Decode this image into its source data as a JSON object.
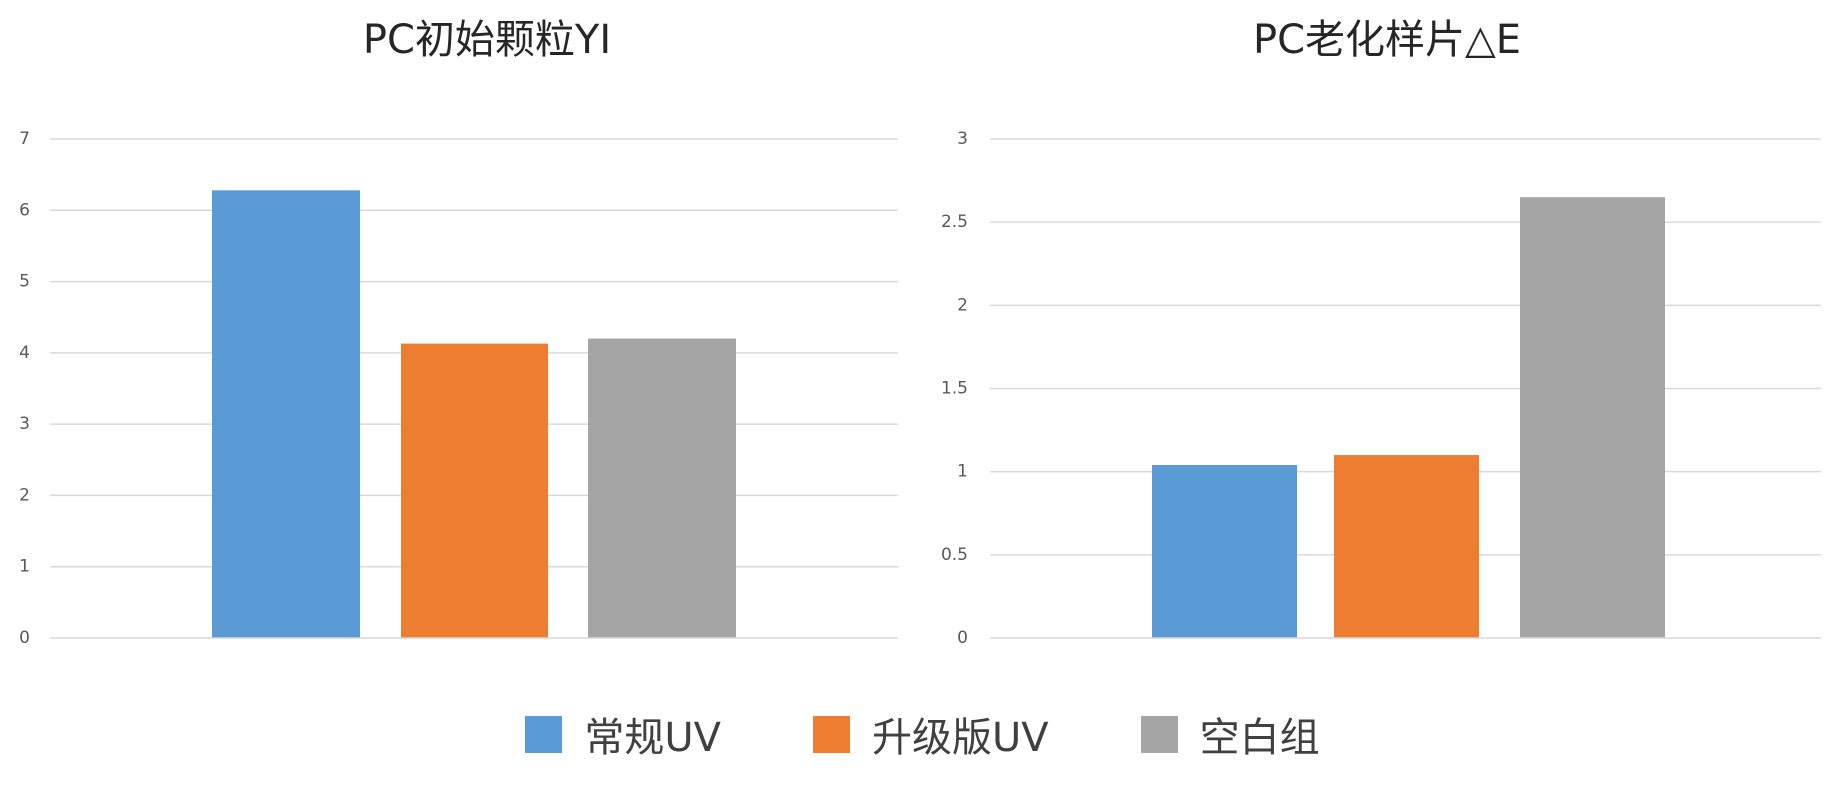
{
  "chart_data": [
    {
      "type": "bar",
      "title": "PC初始颗粒YI",
      "xlabel": "",
      "ylabel": "",
      "ylim": [
        0,
        7
      ],
      "yticks": [
        "0",
        "1",
        "2",
        "3",
        "4",
        "5",
        "6",
        "7"
      ],
      "grid": true,
      "legend": "bottom-center",
      "categories": [
        ""
      ],
      "series": [
        {
          "name": "常规UV",
          "values": [
            6.28
          ]
        },
        {
          "name": "升级版UV",
          "values": [
            4.13
          ]
        },
        {
          "name": "空白组",
          "values": [
            4.2
          ]
        }
      ]
    },
    {
      "type": "bar",
      "title": "PC老化样片△E",
      "xlabel": "",
      "ylabel": "",
      "ylim": [
        0,
        3
      ],
      "yticks": [
        "0",
        "0.5",
        "1",
        "1.5",
        "2",
        "2.5",
        "3"
      ],
      "grid": true,
      "legend": "bottom-center",
      "categories": [
        ""
      ],
      "series": [
        {
          "name": "常规UV",
          "values": [
            1.04
          ]
        },
        {
          "name": "升级版UV",
          "values": [
            1.1
          ]
        },
        {
          "name": "空白组",
          "values": [
            2.65
          ]
        }
      ]
    }
  ],
  "legend": {
    "items": [
      {
        "label": "常规UV",
        "color": "#5b9bd5"
      },
      {
        "label": "升级版UV",
        "color": "#ed7d31"
      },
      {
        "label": "空白组",
        "color": "#a5a5a5"
      }
    ]
  },
  "colors": {
    "series": [
      "#5b9bd5",
      "#ed7d31",
      "#a5a5a5"
    ],
    "grid": "#d9d9d9",
    "text": "#595959"
  }
}
